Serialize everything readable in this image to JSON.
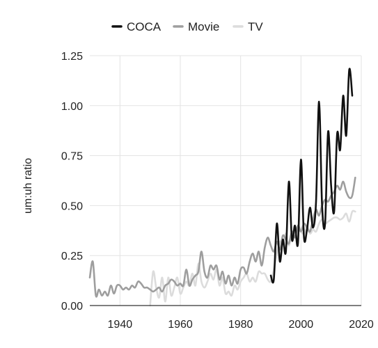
{
  "chart_data": {
    "type": "line",
    "title": "",
    "xlabel": "",
    "ylabel": "um:uh ratio",
    "xlim": [
      1930,
      2020
    ],
    "ylim": [
      0,
      1.25
    ],
    "xticks": [
      1940,
      1960,
      1980,
      2000,
      2020
    ],
    "xtick_labels": [
      "1940",
      "1960",
      "1980",
      "2000",
      "2020"
    ],
    "yticks": [
      0,
      0.25,
      0.5,
      0.75,
      1.0,
      1.25
    ],
    "ytick_labels": [
      "0.00",
      "0.25",
      "0.50",
      "0.75",
      "1.00",
      "1.25"
    ],
    "grid": true,
    "legend_position": "top",
    "series": [
      {
        "name": "COCA",
        "color": "#111111",
        "x": [
          1990,
          1991,
          1992,
          1993,
          1994,
          1995,
          1996,
          1997,
          1998,
          1999,
          2000,
          2001,
          2002,
          2003,
          2004,
          2005,
          2006,
          2007,
          2008,
          2009,
          2010,
          2011,
          2012,
          2013,
          2014,
          2015,
          2016,
          2017
        ],
        "y": [
          0.15,
          0.13,
          0.41,
          0.22,
          0.33,
          0.27,
          0.62,
          0.33,
          0.4,
          0.31,
          0.73,
          0.34,
          0.38,
          0.49,
          0.39,
          0.52,
          1.02,
          0.5,
          0.41,
          0.87,
          0.6,
          0.47,
          0.86,
          0.78,
          1.05,
          0.85,
          1.18,
          1.05
        ]
      },
      {
        "name": "Movie",
        "color": "#9e9e9e",
        "x": [
          1930,
          1931,
          1932,
          1933,
          1934,
          1935,
          1936,
          1937,
          1938,
          1939,
          1940,
          1941,
          1942,
          1943,
          1944,
          1945,
          1946,
          1947,
          1948,
          1949,
          1950,
          1951,
          1952,
          1953,
          1954,
          1955,
          1956,
          1957,
          1958,
          1959,
          1960,
          1961,
          1962,
          1963,
          1964,
          1965,
          1966,
          1967,
          1968,
          1969,
          1970,
          1971,
          1972,
          1973,
          1974,
          1975,
          1976,
          1977,
          1978,
          1979,
          1980,
          1981,
          1982,
          1983,
          1984,
          1985,
          1986,
          1987,
          1988,
          1989,
          1990,
          1991,
          1992,
          1993,
          1994,
          1995,
          1996,
          1997,
          1998,
          1999,
          2000,
          2001,
          2002,
          2003,
          2004,
          2005,
          2006,
          2007,
          2008,
          2009,
          2010,
          2011,
          2012,
          2013,
          2014,
          2015,
          2016,
          2017,
          2018
        ],
        "y": [
          0.14,
          0.22,
          0.05,
          0.08,
          0.05,
          0.07,
          0.05,
          0.1,
          0.06,
          0.1,
          0.1,
          0.08,
          0.09,
          0.08,
          0.1,
          0.09,
          0.12,
          0.11,
          0.09,
          0.09,
          0.08,
          0.07,
          0.08,
          0.09,
          0.07,
          0.1,
          0.11,
          0.13,
          0.12,
          0.1,
          0.11,
          0.1,
          0.18,
          0.1,
          0.13,
          0.15,
          0.17,
          0.27,
          0.17,
          0.14,
          0.2,
          0.18,
          0.2,
          0.13,
          0.17,
          0.11,
          0.15,
          0.1,
          0.14,
          0.11,
          0.18,
          0.19,
          0.16,
          0.22,
          0.26,
          0.22,
          0.27,
          0.2,
          0.29,
          0.34,
          0.3,
          0.27,
          0.32,
          0.28,
          0.35,
          0.33,
          0.31,
          0.37,
          0.34,
          0.4,
          0.37,
          0.41,
          0.39,
          0.37,
          0.43,
          0.48,
          0.45,
          0.5,
          0.53,
          0.52,
          0.55,
          0.57,
          0.6,
          0.58,
          0.62,
          0.57,
          0.54,
          0.55,
          0.64
        ]
      },
      {
        "name": "TV",
        "color": "#dcdcdc",
        "x": [
          1950,
          1951,
          1952,
          1953,
          1954,
          1955,
          1956,
          1957,
          1958,
          1959,
          1960,
          1961,
          1962,
          1963,
          1964,
          1965,
          1966,
          1967,
          1968,
          1969,
          1970,
          1971,
          1972,
          1973,
          1974,
          1975,
          1976,
          1977,
          1978,
          1979,
          1980,
          1981,
          1982,
          1983,
          1984,
          1985,
          1986,
          1987,
          1988,
          1989,
          1990,
          1991,
          1992,
          1993,
          1994,
          1995,
          1996,
          1997,
          1998,
          1999,
          2000,
          2001,
          2002,
          2003,
          2004,
          2005,
          2006,
          2007,
          2008,
          2009,
          2010,
          2011,
          2012,
          2013,
          2014,
          2015,
          2016,
          2017,
          2018
        ],
        "y": [
          0.0,
          0.17,
          0.09,
          0.04,
          0.14,
          0.02,
          0.14,
          0.05,
          0.09,
          0.14,
          0.06,
          0.09,
          0.12,
          0.1,
          0.16,
          0.1,
          0.21,
          0.12,
          0.09,
          0.12,
          0.16,
          0.13,
          0.18,
          0.1,
          0.14,
          0.06,
          0.07,
          0.05,
          0.1,
          0.08,
          0.12,
          0.14,
          0.16,
          0.12,
          0.14,
          0.12,
          0.17,
          0.16,
          0.16,
          0.13,
          0.12,
          0.18,
          0.26,
          0.32,
          0.31,
          0.36,
          0.3,
          0.37,
          0.36,
          0.4,
          0.37,
          0.36,
          0.4,
          0.36,
          0.38,
          0.37,
          0.41,
          0.43,
          0.41,
          0.42,
          0.43,
          0.44,
          0.44,
          0.43,
          0.44,
          0.46,
          0.42,
          0.47,
          0.47
        ]
      }
    ]
  }
}
